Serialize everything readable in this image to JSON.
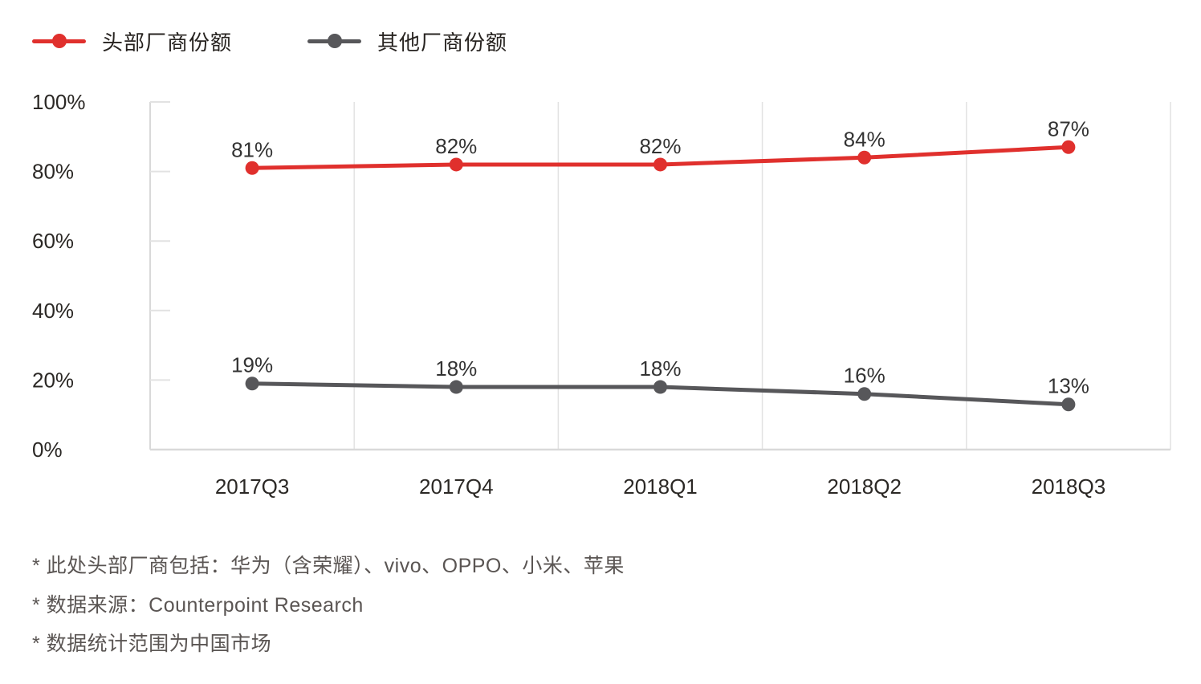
{
  "chart_data": {
    "type": "line",
    "categories": [
      "2017Q3",
      "2017Q4",
      "2018Q1",
      "2018Q2",
      "2018Q3"
    ],
    "series": [
      {
        "name": "头部厂商份额",
        "color": "#e0302d",
        "values": [
          81,
          82,
          82,
          84,
          87
        ],
        "labels": [
          "81%",
          "82%",
          "82%",
          "84%",
          "87%"
        ]
      },
      {
        "name": "其他厂商份额",
        "color": "#57575a",
        "values": [
          19,
          18,
          18,
          16,
          13
        ],
        "labels": [
          "19%",
          "18%",
          "18%",
          "16%",
          "13%"
        ]
      }
    ],
    "ylim": [
      0,
      100
    ],
    "y_tick_values": [
      100,
      80,
      60,
      40,
      20,
      0
    ],
    "y_tick_labels": [
      "100%",
      "80%",
      "60%",
      "40%",
      "20%",
      "0%"
    ],
    "grid": "vertical-only",
    "legend_position": "top-left",
    "data_labels": true,
    "colors": {
      "grid": "#e2e2e2",
      "axis": "#d9d9d9",
      "tick_label": "#2b2825",
      "x_label": "#2b2825",
      "data_label": "#333333",
      "background": "#ffffff"
    }
  },
  "notes": [
    "* 此处头部厂商包括：华为（含荣耀）、vivo、OPPO、小米、苹果",
    "* 数据来源：Counterpoint Research",
    "* 数据统计范围为中国市场"
  ]
}
